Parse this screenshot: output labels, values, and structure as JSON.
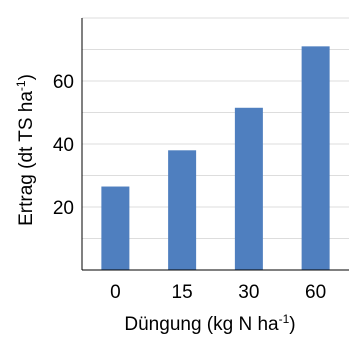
{
  "chart_data": {
    "type": "bar",
    "title": "",
    "xlabel": "Düngung (kg N ha-1)",
    "ylabel": "Ertrag (dt TS ha-1)",
    "xlabel_parts": {
      "main": "Düngung (kg N ha",
      "sup": "-1",
      "end": ")"
    },
    "ylabel_parts": {
      "main": "Ertrag (dt TS ha",
      "sup": "-1",
      "end": ")"
    },
    "categories": [
      "0",
      "15",
      "30",
      "60"
    ],
    "values": [
      26.5,
      38.0,
      51.5,
      71.0
    ],
    "ylim": [
      0,
      80
    ],
    "yticks": [
      20,
      40,
      60
    ],
    "grid": true,
    "bar_color": "#4f7fbf",
    "grid_color": "#dddddd",
    "axis_color": "#000000"
  }
}
